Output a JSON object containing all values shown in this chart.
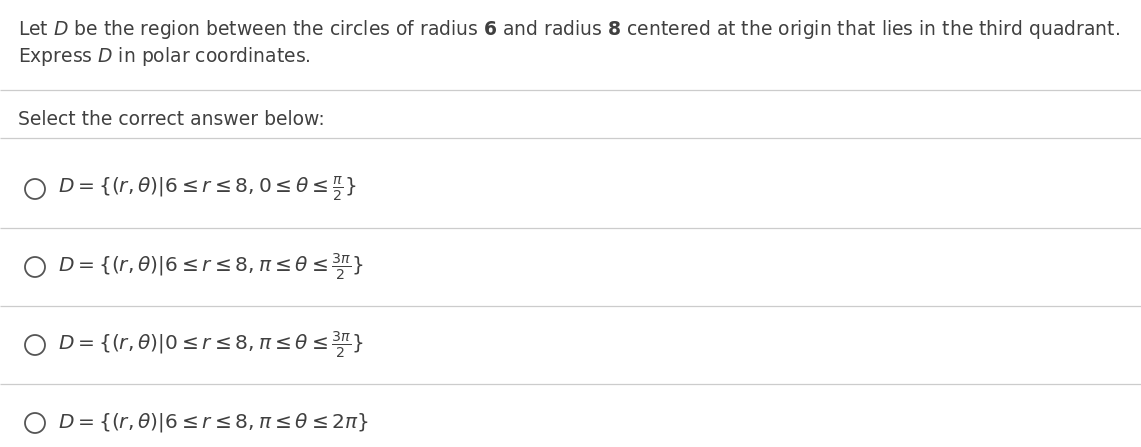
{
  "title_line1": "Let $D$ be the region between the circles of radius $\\mathbf{6}$ and radius $\\mathbf{8}$ centered at the origin that lies in the third quadrant.",
  "title_line2": "Express $D$ in polar coordinates.",
  "prompt": "Select the correct answer below:",
  "options": [
    "$D = \\{(r,\\theta)|6 \\leq r \\leq 8, 0 \\leq \\theta \\leq \\frac{\\pi}{2}\\}$",
    "$D = \\{(r,\\theta)|6 \\leq r \\leq 8, \\pi \\leq \\theta \\leq \\frac{3\\pi}{2}\\}$",
    "$D = \\{(r,\\theta)|0 \\leq r \\leq 8, \\pi \\leq \\theta \\leq \\frac{3\\pi}{2}\\}$",
    "$D = \\{(r,\\theta)|6 \\leq r \\leq 8, \\pi \\leq \\theta \\leq 2\\pi\\}$"
  ],
  "bg_color": "#ffffff",
  "text_color": "#404040",
  "line_color": "#cccccc",
  "circle_color": "#555555",
  "font_size_title": 13.5,
  "font_size_options": 14.5,
  "font_size_prompt": 13.5
}
